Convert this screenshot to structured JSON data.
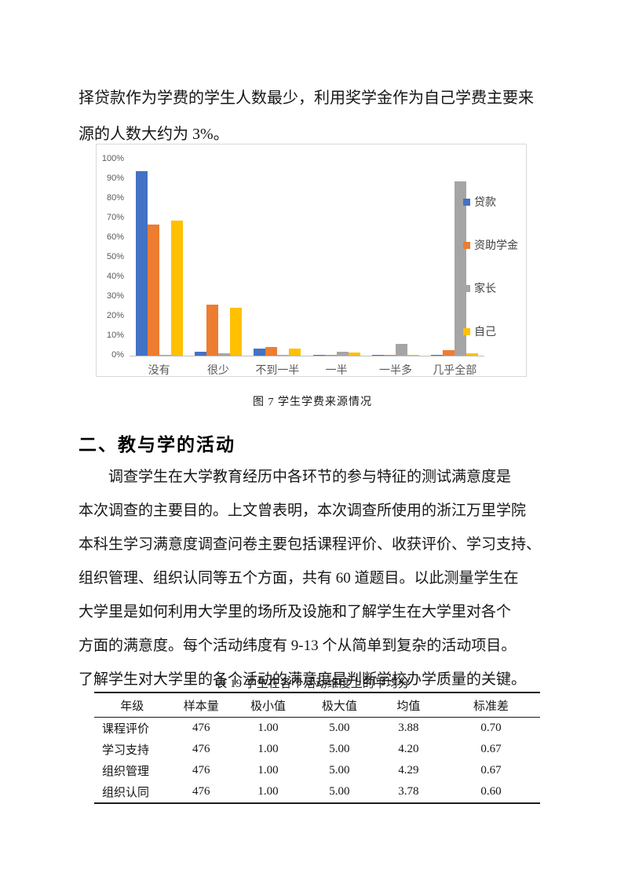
{
  "intro": {
    "text": "择贷款作为学费的学生人数最少，利用奖学金作为自己学费主要来\n源的人数大约为 3%。"
  },
  "figure": {
    "caption": "图 7 学生学费来源情况"
  },
  "section": {
    "heading": "二、教与学的活动",
    "body": "调查学生在大学教育经历中各环节的参与特征的测试满意度是\n本次调查的主要目的。上文曾表明，本次调查所使用的浙江万里学院\n本科生学习满意度调查问卷主要包括课程评价、收获评价、学习支持、\n组织管理、组织认同等五个方面，共有 60 道题目。以此测量学生在\n大学里是如何利用大学里的场所及设施和了解学生在大学里对各个\n方面的满意度。每个活动纬度有 9-13 个从简单到复杂的活动项目。\n了解学生对大学里的各个活动的满意度是判断学校办学质量的关键。"
  },
  "stats_table": {
    "caption": "表 19 学生在各个活动维度上的平均分",
    "headers": [
      "年级",
      "样本量",
      "极小值",
      "极大值",
      "均值",
      "标准差"
    ],
    "rows": [
      [
        "课程评价",
        "476",
        "1.00",
        "5.00",
        "3.88",
        "0.70"
      ],
      [
        "学习支持",
        "476",
        "1.00",
        "5.00",
        "4.20",
        "0.67"
      ],
      [
        "组织管理",
        "476",
        "1.00",
        "5.00",
        "4.29",
        "0.67"
      ],
      [
        "组织认同",
        "476",
        "1.00",
        "5.00",
        "3.78",
        "0.60"
      ]
    ]
  },
  "chart_data": {
    "type": "bar",
    "title": "",
    "categories": [
      "没有",
      "很少",
      "不到一半",
      "一半",
      "一半多",
      "几乎全部"
    ],
    "series": [
      {
        "name": "贷款",
        "color": "#4472C4",
        "values": [
          94,
          2,
          3.5,
          0.2,
          0.5,
          0.5
        ]
      },
      {
        "name": "资助学金",
        "color": "#ED7D31",
        "values": [
          67,
          26,
          4.5,
          0.4,
          0.4,
          3.0
        ]
      },
      {
        "name": "家长",
        "color": "#A5A5A5",
        "values": [
          0.5,
          1.2,
          0.3,
          2.0,
          6.0,
          89
        ]
      },
      {
        "name": "自己",
        "color": "#FFC000",
        "values": [
          69,
          24.5,
          3.7,
          1.5,
          0.5,
          1.3
        ]
      }
    ],
    "xlabel": "",
    "ylabel": "",
    "ylim": [
      0,
      100
    ],
    "yticks": [
      "100%",
      "90%",
      "80%",
      "70%",
      "60%",
      "50%",
      "40%",
      "30%",
      "20%",
      "10%",
      "0%"
    ],
    "grid": false,
    "legend_position": "right",
    "axis_label_color": "#595959",
    "chart_border_color": "#d9d9d9"
  }
}
